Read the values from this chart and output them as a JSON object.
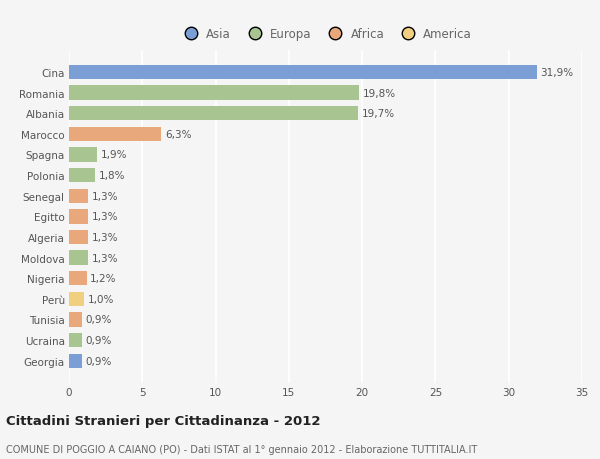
{
  "categories": [
    "Cina",
    "Romania",
    "Albania",
    "Marocco",
    "Spagna",
    "Polonia",
    "Senegal",
    "Egitto",
    "Algeria",
    "Moldova",
    "Nigeria",
    "Perù",
    "Tunisia",
    "Ucraina",
    "Georgia"
  ],
  "values": [
    31.9,
    19.8,
    19.7,
    6.3,
    1.9,
    1.8,
    1.3,
    1.3,
    1.3,
    1.3,
    1.2,
    1.0,
    0.9,
    0.9,
    0.9
  ],
  "labels": [
    "31,9%",
    "19,8%",
    "19,7%",
    "6,3%",
    "1,9%",
    "1,8%",
    "1,3%",
    "1,3%",
    "1,3%",
    "1,3%",
    "1,2%",
    "1,0%",
    "0,9%",
    "0,9%",
    "0,9%"
  ],
  "bar_colors": [
    "#7b9fd4",
    "#a8c490",
    "#a8c490",
    "#e8a87c",
    "#a8c490",
    "#a8c490",
    "#e8a87c",
    "#e8a87c",
    "#e8a87c",
    "#a8c490",
    "#e8a87c",
    "#f0d080",
    "#e8a87c",
    "#a8c490",
    "#7b9fd4"
  ],
  "legend_labels": [
    "Asia",
    "Europa",
    "Africa",
    "America"
  ],
  "legend_colors": [
    "#7b9fd4",
    "#a8c490",
    "#e8a87c",
    "#f0d080"
  ],
  "xlim": [
    0,
    35
  ],
  "xticks": [
    0,
    5,
    10,
    15,
    20,
    25,
    30,
    35
  ],
  "title": "Cittadini Stranieri per Cittadinanza - 2012",
  "subtitle": "COMUNE DI POGGIO A CAIANO (PO) - Dati ISTAT al 1° gennaio 2012 - Elaborazione TUTTITALIA.IT",
  "bg_color": "#f5f5f5",
  "grid_color": "#ffffff",
  "bar_height": 0.7,
  "label_fontsize": 7.5,
  "ytick_fontsize": 7.5,
  "xtick_fontsize": 7.5,
  "title_fontsize": 9.5,
  "subtitle_fontsize": 7.0,
  "legend_fontsize": 8.5
}
